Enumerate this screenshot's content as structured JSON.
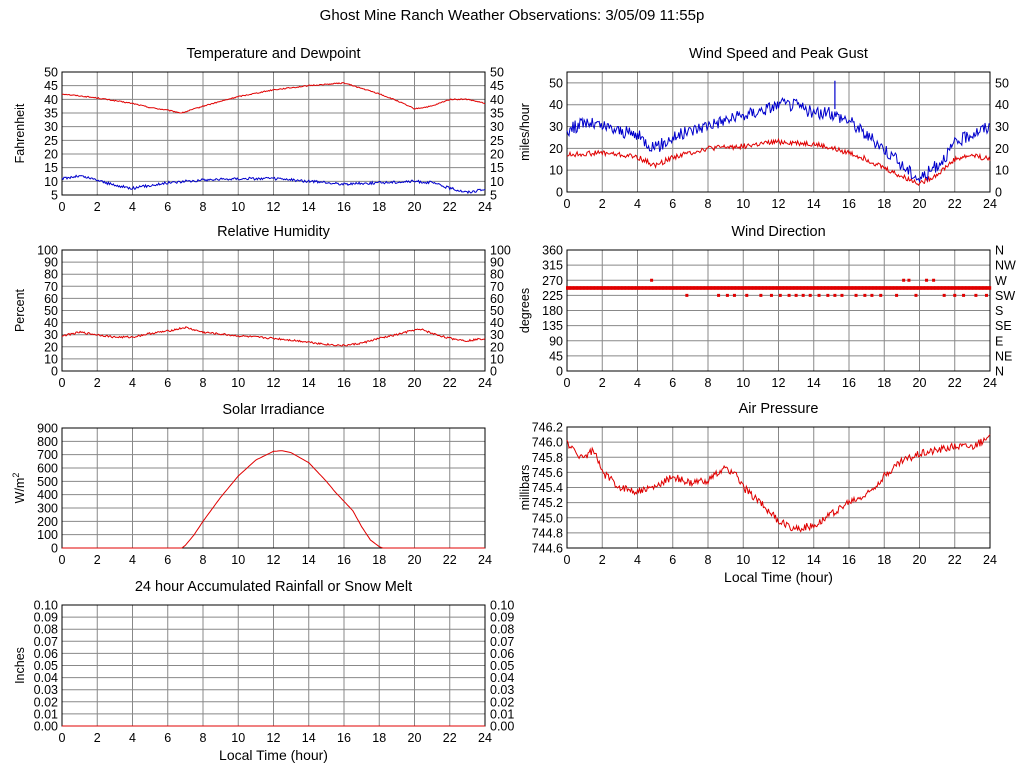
{
  "page_title": "Ghost Mine Ranch Weather Observations: 3/05/09 11:55p",
  "colors": {
    "red": "#e00000",
    "blue": "#0000cc",
    "grid": "#888888",
    "axis": "#000000"
  },
  "chart_data": [
    {
      "id": "temperature",
      "type": "line",
      "title": "Temperature and Dewpoint",
      "xlabel": "",
      "ylabel": "Fahrenheit",
      "xlim": [
        0,
        24
      ],
      "ylim": [
        5,
        50
      ],
      "x_ticks": [
        0,
        2,
        4,
        6,
        8,
        10,
        12,
        14,
        16,
        18,
        20,
        22,
        24
      ],
      "y_ticks": [
        5,
        10,
        15,
        20,
        25,
        30,
        35,
        40,
        45,
        50
      ],
      "right_ticks": [
        "5",
        "10",
        "15",
        "20",
        "25",
        "30",
        "35",
        "40",
        "45",
        "50"
      ],
      "grid": true,
      "series": [
        {
          "color": "#e00000",
          "noise": 0.2,
          "x": [
            0,
            2,
            4,
            5,
            6,
            6.8,
            8,
            10,
            12,
            14,
            16,
            17,
            18,
            19,
            20,
            21,
            22,
            23,
            24
          ],
          "y": [
            42,
            40.5,
            38.5,
            37,
            36,
            35,
            37.5,
            41,
            43.5,
            45,
            46,
            44,
            42,
            39.5,
            36.5,
            37.5,
            40,
            40,
            38.5
          ]
        },
        {
          "color": "#0000cc",
          "noise": 0.5,
          "x": [
            0,
            1,
            2,
            3,
            4,
            5,
            6,
            8,
            10,
            12,
            14,
            16,
            18,
            20,
            21,
            22,
            23,
            24
          ],
          "y": [
            11,
            12,
            10.5,
            8.5,
            7.5,
            8.5,
            9.5,
            10.5,
            11,
            11,
            10,
            9,
            9.5,
            10,
            9.5,
            7.5,
            6,
            7
          ]
        }
      ]
    },
    {
      "id": "wind-speed",
      "type": "line",
      "title": "Wind Speed and Peak Gust",
      "xlabel": "",
      "ylabel": "miles/hour",
      "xlim": [
        0,
        24
      ],
      "ylim": [
        0,
        55
      ],
      "x_ticks": [
        0,
        2,
        4,
        6,
        8,
        10,
        12,
        14,
        16,
        18,
        20,
        22,
        24
      ],
      "y_ticks": [
        0,
        10,
        20,
        30,
        40,
        50
      ],
      "right_ticks": [
        "0",
        "10",
        "20",
        "30",
        "40",
        "50"
      ],
      "grid": true,
      "series": [
        {
          "color": "#e00000",
          "noise": 1.2,
          "x": [
            0,
            2,
            4,
            5,
            6,
            8,
            10,
            12,
            14,
            15,
            16,
            17,
            18,
            19,
            20,
            21,
            22,
            23,
            24
          ],
          "y": [
            17,
            18,
            16,
            12,
            16,
            20,
            21,
            23,
            22,
            20,
            18,
            15,
            11,
            7,
            4,
            8,
            15,
            17,
            15
          ]
        },
        {
          "color": "#0000cc",
          "noise": 3,
          "x": [
            0,
            1,
            2,
            3,
            4,
            5,
            6,
            8,
            10,
            12,
            13,
            14,
            15,
            16,
            17,
            18,
            19,
            20,
            21,
            22,
            23,
            24
          ],
          "y": [
            28,
            32,
            30,
            28,
            26,
            20,
            25,
            31,
            35,
            40,
            40,
            36,
            36,
            33,
            26,
            20,
            12,
            6,
            12,
            22,
            27,
            30
          ]
        }
      ],
      "spike": {
        "x": 15.2,
        "y": 51
      }
    },
    {
      "id": "humidity",
      "type": "line",
      "title": "Relative Humidity",
      "xlabel": "",
      "ylabel": "Percent",
      "xlim": [
        0,
        24
      ],
      "ylim": [
        0,
        100
      ],
      "x_ticks": [
        0,
        2,
        4,
        6,
        8,
        10,
        12,
        14,
        16,
        18,
        20,
        22,
        24
      ],
      "y_ticks": [
        0,
        10,
        20,
        30,
        40,
        50,
        60,
        70,
        80,
        90,
        100
      ],
      "right_ticks": [
        "0",
        "10",
        "20",
        "30",
        "40",
        "50",
        "60",
        "70",
        "80",
        "90",
        "100"
      ],
      "grid": true,
      "series": [
        {
          "color": "#e00000",
          "noise": 0.8,
          "x": [
            0,
            1,
            2,
            3,
            4,
            5,
            6,
            7,
            8,
            10,
            12,
            14,
            15,
            16,
            17,
            18,
            19,
            20,
            20.5,
            21,
            22,
            23,
            24
          ],
          "y": [
            29,
            32,
            30,
            28,
            28,
            31,
            33,
            36,
            32,
            29,
            27,
            24,
            22,
            21,
            23,
            27,
            30,
            34,
            34,
            31,
            27,
            25,
            27
          ]
        }
      ]
    },
    {
      "id": "wind-direction",
      "type": "scatter",
      "title": "Wind Direction",
      "xlabel": "",
      "ylabel": "degrees",
      "xlim": [
        0,
        24
      ],
      "ylim": [
        0,
        360
      ],
      "x_ticks": [
        0,
        2,
        4,
        6,
        8,
        10,
        12,
        14,
        16,
        18,
        20,
        22,
        24
      ],
      "y_ticks": [
        0,
        45,
        90,
        135,
        180,
        225,
        270,
        315,
        360
      ],
      "right_ticks": [
        "N",
        "NE",
        "E",
        "SE",
        "S",
        "SW",
        "W",
        "NW",
        "N"
      ],
      "grid": true,
      "main_direction": 247,
      "scatter": {
        "color": "#e00000",
        "points": [
          [
            4.8,
            270
          ],
          [
            6.8,
            225
          ],
          [
            8.6,
            225
          ],
          [
            9.1,
            225
          ],
          [
            9.5,
            225
          ],
          [
            10.2,
            225
          ],
          [
            11.0,
            225
          ],
          [
            11.6,
            225
          ],
          [
            12.1,
            225
          ],
          [
            12.6,
            225
          ],
          [
            13.0,
            225
          ],
          [
            13.4,
            225
          ],
          [
            13.8,
            225
          ],
          [
            14.3,
            225
          ],
          [
            14.8,
            225
          ],
          [
            15.2,
            225
          ],
          [
            15.6,
            225
          ],
          [
            16.4,
            225
          ],
          [
            16.9,
            225
          ],
          [
            17.3,
            225
          ],
          [
            17.8,
            225
          ],
          [
            18.7,
            225
          ],
          [
            19.1,
            270
          ],
          [
            19.4,
            270
          ],
          [
            19.8,
            225
          ],
          [
            20.4,
            270
          ],
          [
            20.8,
            270
          ],
          [
            21.4,
            225
          ],
          [
            22.0,
            225
          ],
          [
            22.5,
            225
          ],
          [
            23.2,
            225
          ],
          [
            23.8,
            225
          ]
        ]
      }
    },
    {
      "id": "solar",
      "type": "line",
      "title": "Solar Irradiance",
      "xlabel": "",
      "ylabel": "W/m",
      "ylabel_sup": "2",
      "xlim": [
        0,
        24
      ],
      "ylim": [
        0,
        900
      ],
      "x_ticks": [
        0,
        2,
        4,
        6,
        8,
        10,
        12,
        14,
        16,
        18,
        20,
        22,
        24
      ],
      "y_ticks": [
        0,
        100,
        200,
        300,
        400,
        500,
        600,
        700,
        800,
        900
      ],
      "grid": true,
      "series": [
        {
          "color": "#e00000",
          "noise": 0,
          "x": [
            0,
            6.8,
            7,
            7.5,
            8,
            9,
            10,
            11,
            12,
            12.5,
            13,
            14,
            15,
            15.5,
            16,
            16.5,
            17,
            17.5,
            18,
            18.2,
            24
          ],
          "y": [
            0,
            0,
            20,
            100,
            200,
            380,
            540,
            660,
            725,
            730,
            715,
            640,
            500,
            420,
            350,
            280,
            160,
            60,
            10,
            0,
            0
          ]
        }
      ]
    },
    {
      "id": "pressure",
      "type": "line",
      "title": "Air Pressure",
      "xlabel": "Local Time (hour)",
      "ylabel": "millibars",
      "xlim": [
        0,
        24
      ],
      "ylim": [
        744.6,
        746.2
      ],
      "x_ticks": [
        0,
        2,
        4,
        6,
        8,
        10,
        12,
        14,
        16,
        18,
        20,
        22,
        24
      ],
      "y_ticks": [
        744.6,
        744.8,
        745.0,
        745.2,
        745.4,
        745.6,
        745.8,
        746.0,
        746.2
      ],
      "y_tick_labels": [
        "744.6",
        "744.8",
        "745.0",
        "745.2",
        "745.4",
        "745.6",
        "745.8",
        "746.0",
        "746.2"
      ],
      "grid": true,
      "series": [
        {
          "color": "#e00000",
          "noise": 0.05,
          "x": [
            0,
            0.5,
            1,
            1.5,
            2,
            3,
            4,
            5,
            6,
            7,
            8,
            9,
            9.5,
            10,
            11,
            12,
            13,
            14,
            15,
            16,
            17,
            18,
            19,
            20,
            21,
            22,
            23,
            24
          ],
          "y": [
            746.0,
            745.85,
            745.8,
            745.9,
            745.6,
            745.4,
            745.35,
            745.4,
            745.55,
            745.45,
            745.5,
            745.65,
            745.6,
            745.4,
            745.2,
            744.95,
            744.85,
            744.9,
            745.05,
            745.2,
            745.3,
            745.55,
            745.75,
            745.85,
            745.9,
            745.95,
            745.95,
            746.05
          ]
        }
      ]
    },
    {
      "id": "rainfall",
      "type": "line",
      "title": "24 hour Accumulated Rainfall or Snow Melt",
      "xlabel": "Local Time (hour)",
      "ylabel": "Inches",
      "xlim": [
        0,
        24
      ],
      "ylim": [
        0,
        0.1
      ],
      "x_ticks": [
        0,
        2,
        4,
        6,
        8,
        10,
        12,
        14,
        16,
        18,
        20,
        22,
        24
      ],
      "y_ticks": [
        0,
        0.01,
        0.02,
        0.03,
        0.04,
        0.05,
        0.06,
        0.07,
        0.08,
        0.09,
        0.1
      ],
      "y_tick_labels": [
        "0.00",
        "0.01",
        "0.02",
        "0.03",
        "0.04",
        "0.05",
        "0.06",
        "0.07",
        "0.08",
        "0.09",
        "0.10"
      ],
      "right_ticks": [
        "0.00",
        "0.01",
        "0.02",
        "0.03",
        "0.04",
        "0.05",
        "0.06",
        "0.07",
        "0.08",
        "0.09",
        "0.10"
      ],
      "grid": true,
      "series": [
        {
          "color": "#e00000",
          "noise": 0,
          "x": [
            0,
            24
          ],
          "y": [
            0,
            0
          ]
        }
      ]
    }
  ]
}
